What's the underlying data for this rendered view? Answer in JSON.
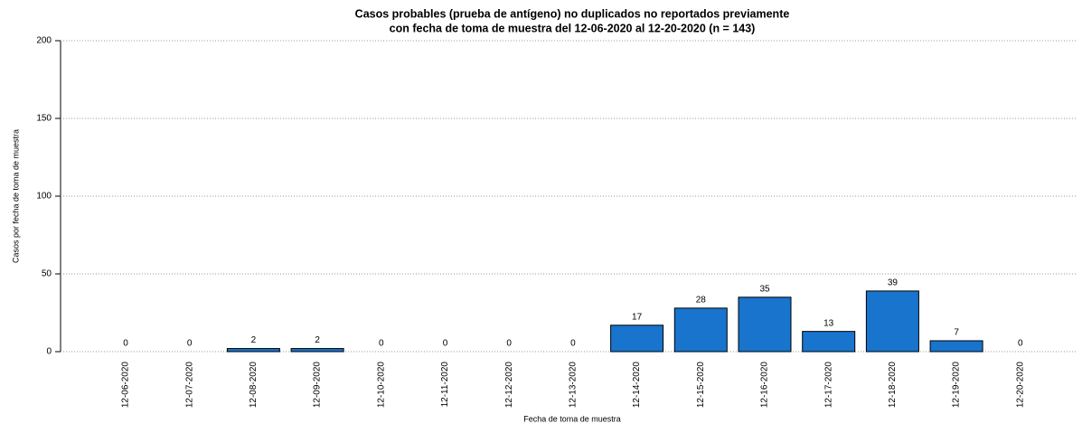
{
  "chart_data": {
    "type": "bar",
    "title": [
      "Casos probables (prueba de antígeno) no duplicados no reportados previamente",
      "con fecha de toma de muestra del 12-06-2020 al 12-20-2020 (n = 143)"
    ],
    "x_label": "Fecha de toma de muestra",
    "y_label": "Casos por fecha de toma de muestra",
    "categories": [
      "12-06-2020",
      "12-07-2020",
      "12-08-2020",
      "12-09-2020",
      "12-10-2020",
      "12-11-2020",
      "12-12-2020",
      "12-13-2020",
      "12-14-2020",
      "12-15-2020",
      "12-16-2020",
      "12-17-2020",
      "12-18-2020",
      "12-19-2020",
      "12-20-2020"
    ],
    "values": [
      0,
      0,
      2,
      2,
      0,
      0,
      0,
      0,
      17,
      28,
      35,
      13,
      39,
      7,
      0
    ],
    "color": "#1874cd",
    "ylim": [
      0,
      200
    ],
    "yticks": [
      0,
      50,
      100,
      150,
      200
    ],
    "grid": true
  }
}
